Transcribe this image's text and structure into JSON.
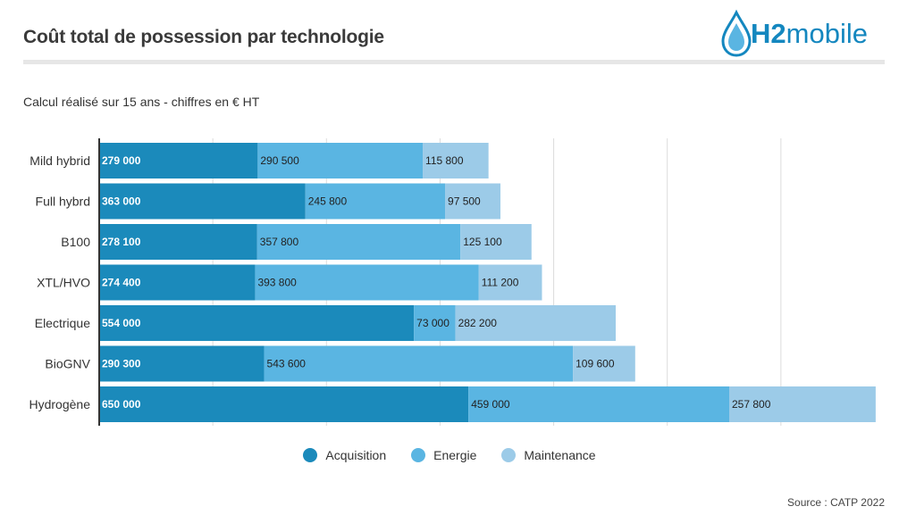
{
  "header": {
    "title": "Coût total de possession par technologie",
    "subtitle": "Calcul réalisé sur 15 ans - chiffres en € HT",
    "logo_prefix": "H2",
    "logo_suffix": "mobile"
  },
  "source": "Source : CATP 2022",
  "colors": {
    "acquisition": "#1b8abb",
    "energie": "#5ab5e2",
    "maintenance": "#9ccbe8",
    "brand": "#1487bf"
  },
  "chart_data": {
    "type": "bar",
    "orientation": "horizontal",
    "stacked": true,
    "categories": [
      "Mild hybrid",
      "Full hybrd",
      "B100",
      "XTL/HVO",
      "Electrique",
      "BioGNV",
      "Hydrogène"
    ],
    "series": [
      {
        "name": "Acquisition",
        "values": [
          279000,
          363000,
          278100,
          274400,
          554000,
          290300,
          650000
        ],
        "labels": [
          "279 000",
          "363 000",
          "278 100",
          "274 400",
          "554 000",
          "290 300",
          "650 000"
        ]
      },
      {
        "name": "Energie",
        "values": [
          290500,
          245800,
          357800,
          393800,
          73000,
          543600,
          459000
        ],
        "labels": [
          "290 500",
          "245 800",
          "357 800",
          "393 800",
          "73 000",
          "543 600",
          "459 000"
        ]
      },
      {
        "name": "Maintenance",
        "values": [
          115800,
          97500,
          125100,
          111200,
          282200,
          109600,
          257800
        ],
        "labels": [
          "115 800",
          "97 500",
          "125 100",
          "111 200",
          "282 200",
          "109 600",
          "257 800"
        ]
      }
    ],
    "xlim": [
      0,
      1400000
    ],
    "grid": true,
    "legend_position": "bottom"
  }
}
